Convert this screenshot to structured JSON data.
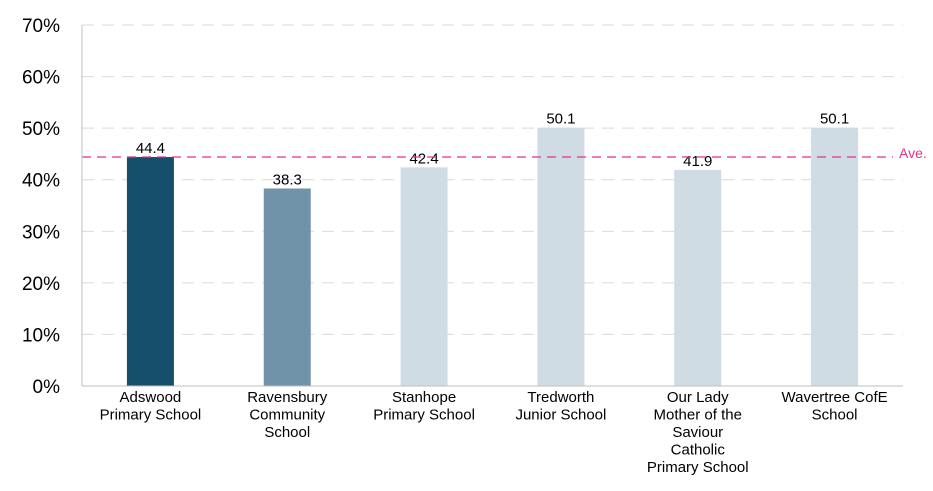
{
  "chart_data": {
    "type": "bar",
    "categories": [
      [
        "Adswood",
        "Primary School"
      ],
      [
        "Ravensbury",
        "Community",
        "School"
      ],
      [
        "Stanhope",
        "Primary School"
      ],
      [
        "Tredworth",
        "Junior School"
      ],
      [
        "Our Lady",
        "Mother of the",
        "Saviour",
        "Catholic",
        "Primary School"
      ],
      [
        "Wavertree CofE",
        "School"
      ]
    ],
    "values": [
      44.4,
      38.3,
      42.4,
      50.1,
      41.9,
      50.1
    ],
    "data_labels": [
      "44.4",
      "38.3",
      "42.4",
      "50.1",
      "41.9",
      "50.1"
    ],
    "bar_colors": [
      "#154f6b",
      "#7193aa",
      "#d0dce4",
      "#d0dce4",
      "#d0dce4",
      "#d0dce4"
    ],
    "ylim": [
      0,
      70
    ],
    "yticks": [
      0,
      10,
      20,
      30,
      40,
      50,
      60,
      70
    ],
    "ytick_labels": [
      "0%",
      "10%",
      "20%",
      "30%",
      "40%",
      "50%",
      "60%",
      "70%"
    ],
    "grid": true,
    "reference_line": {
      "value": 44.4,
      "label": "Ave.",
      "color": "#e0338f"
    },
    "axis_color": "#bfbfbf",
    "grid_color": "#d9d9d9"
  }
}
